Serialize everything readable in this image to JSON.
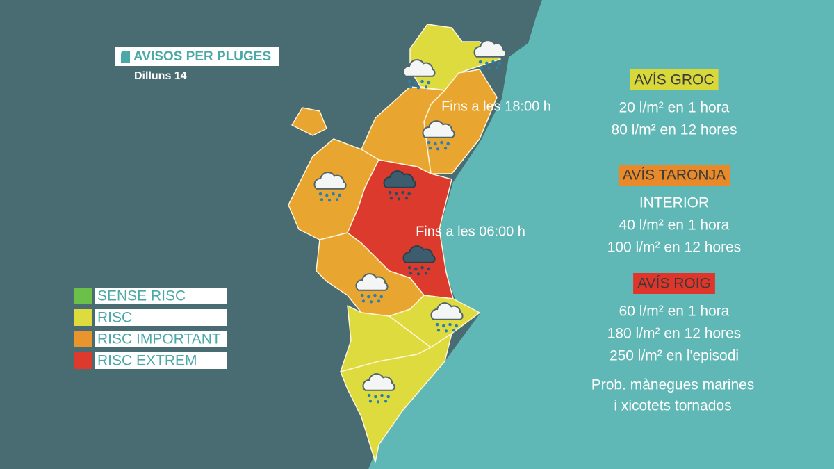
{
  "header": {
    "title": "AVISOS PER PLUGES",
    "subtitle": "Dilluns 14"
  },
  "legend": [
    {
      "label": "SENSE RISC",
      "color": "#6cc04a"
    },
    {
      "label": "RISC",
      "color": "#dedb3e"
    },
    {
      "label": "RISC IMPORTANT",
      "color": "#e8952e"
    },
    {
      "label": "RISC EXTREM",
      "color": "#dd3a2e"
    }
  ],
  "map_labels": [
    "Fins a les 18:00 h",
    "Fins a les 06:00 h"
  ],
  "warnings": [
    {
      "title": "AVÍS GROC",
      "color": "#d8d83a",
      "lines": [
        "20 l/m² en 1 hora",
        "80 l/m² en 12 hores"
      ]
    },
    {
      "title": "AVÍS TARONJA",
      "color": "#e8892a",
      "lines": [
        "INTERIOR",
        "40 l/m² en 1 hora",
        "100 l/m² en 12 hores"
      ]
    },
    {
      "title": "AVÍS ROIG",
      "color": "#e0352b",
      "lines": [
        "60 l/m² en 1 hora",
        "180 l/m² en 12 hores",
        "250 l/m² en l'episodi"
      ]
    }
  ],
  "note": [
    "Prob. mànegues marines",
    "i xicotets tornados"
  ]
}
